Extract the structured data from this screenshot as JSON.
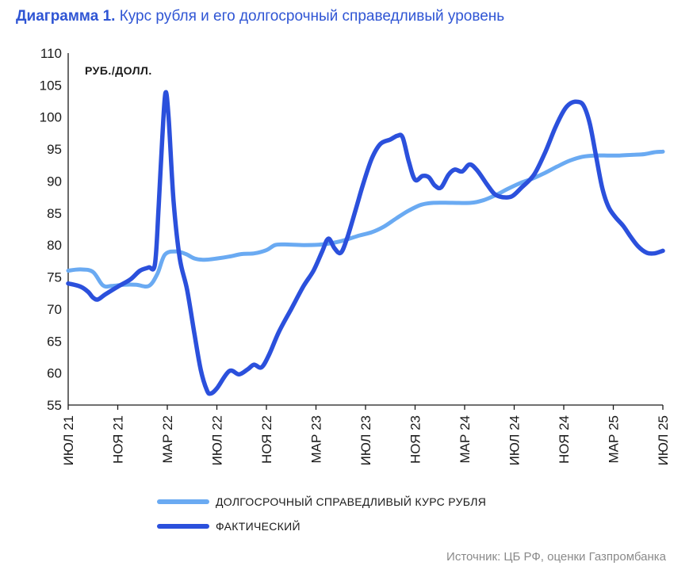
{
  "title": {
    "number": "Диаграмма 1.",
    "text": "Курс рубля и его долгосрочный справедливый уровень"
  },
  "source": "Источник: ЦБ РФ, оценки Газпромбанка",
  "chart_data": {
    "type": "line",
    "unit_label": "РУБ./ДОЛЛ.",
    "ylim": [
      55,
      110
    ],
    "yticks": [
      55,
      60,
      65,
      70,
      75,
      80,
      85,
      90,
      95,
      100,
      105,
      110
    ],
    "xlim": [
      0,
      48
    ],
    "xticks": [
      {
        "x": 0,
        "label": "ИЮЛ 21"
      },
      {
        "x": 4,
        "label": "НОЯ 21"
      },
      {
        "x": 8,
        "label": "МАР 22"
      },
      {
        "x": 12,
        "label": "ИЮЛ 22"
      },
      {
        "x": 16,
        "label": "НОЯ 22"
      },
      {
        "x": 20,
        "label": "МАР 23"
      },
      {
        "x": 24,
        "label": "ИЮЛ 23"
      },
      {
        "x": 28,
        "label": "НОЯ 23"
      },
      {
        "x": 32,
        "label": "МАР 24"
      },
      {
        "x": 36,
        "label": "ИЮЛ 24"
      },
      {
        "x": 40,
        "label": "НОЯ 24"
      },
      {
        "x": 44,
        "label": "МАР 25"
      },
      {
        "x": 48,
        "label": "ИЮЛ 25"
      }
    ],
    "grid": false,
    "legend_position": "bottom",
    "series": [
      {
        "name": "ДОЛГОСРОЧНЫЙ СПРАВЕДЛИВЫЙ КУРС РУБЛЯ",
        "color": "#6aaaf2",
        "points": [
          [
            0,
            76.0
          ],
          [
            1,
            76.2
          ],
          [
            2,
            75.8
          ],
          [
            2.8,
            73.7
          ],
          [
            3.5,
            73.6
          ],
          [
            4.5,
            73.8
          ],
          [
            5.5,
            73.8
          ],
          [
            6.5,
            73.6
          ],
          [
            7.2,
            75.5
          ],
          [
            7.8,
            78.5
          ],
          [
            8.7,
            79.0
          ],
          [
            9.5,
            78.6
          ],
          [
            10.2,
            77.9
          ],
          [
            11,
            77.7
          ],
          [
            12,
            77.9
          ],
          [
            13,
            78.2
          ],
          [
            14,
            78.6
          ],
          [
            15,
            78.7
          ],
          [
            16,
            79.2
          ],
          [
            16.7,
            80.0
          ],
          [
            17.5,
            80.1
          ],
          [
            19,
            80.0
          ],
          [
            20.5,
            80.1
          ],
          [
            22,
            80.6
          ],
          [
            23.5,
            81.5
          ],
          [
            24.5,
            82.0
          ],
          [
            25.5,
            82.9
          ],
          [
            26.5,
            84.2
          ],
          [
            27.5,
            85.4
          ],
          [
            28.5,
            86.3
          ],
          [
            29.5,
            86.6
          ],
          [
            31,
            86.6
          ],
          [
            32.5,
            86.6
          ],
          [
            33.5,
            87.0
          ],
          [
            34.5,
            87.8
          ],
          [
            35.5,
            88.8
          ],
          [
            36.5,
            89.7
          ],
          [
            37.5,
            90.4
          ],
          [
            38.5,
            91.3
          ],
          [
            39.5,
            92.3
          ],
          [
            40.5,
            93.2
          ],
          [
            41.5,
            93.8
          ],
          [
            42.5,
            94.0
          ],
          [
            43.5,
            94.0
          ],
          [
            44.5,
            94.0
          ],
          [
            45.5,
            94.1
          ],
          [
            46.5,
            94.2
          ],
          [
            47.3,
            94.5
          ],
          [
            48,
            94.6
          ]
        ]
      },
      {
        "name": "ФАКТИЧЕСКИЙ",
        "color": "#2b50dc",
        "points": [
          [
            0,
            74.0
          ],
          [
            1,
            73.5
          ],
          [
            1.6,
            72.7
          ],
          [
            2,
            71.8
          ],
          [
            2.4,
            71.5
          ],
          [
            3,
            72.3
          ],
          [
            4,
            73.5
          ],
          [
            5,
            74.6
          ],
          [
            5.8,
            76.0
          ],
          [
            6.5,
            76.5
          ],
          [
            7,
            77.0
          ],
          [
            7.3,
            86.0
          ],
          [
            7.6,
            97.0
          ],
          [
            7.85,
            103.8
          ],
          [
            8.1,
            100.0
          ],
          [
            8.5,
            87.0
          ],
          [
            9,
            78.0
          ],
          [
            9.6,
            73.0
          ],
          [
            10.2,
            66.0
          ],
          [
            10.7,
            60.5
          ],
          [
            11.2,
            57.3
          ],
          [
            11.5,
            56.8
          ],
          [
            12,
            57.6
          ],
          [
            13,
            60.3
          ],
          [
            13.8,
            59.8
          ],
          [
            14.5,
            60.6
          ],
          [
            15,
            61.3
          ],
          [
            15.6,
            60.9
          ],
          [
            16.2,
            62.8
          ],
          [
            17,
            66.4
          ],
          [
            18,
            70.0
          ],
          [
            19,
            73.6
          ],
          [
            19.8,
            76.0
          ],
          [
            20.5,
            79.0
          ],
          [
            21,
            81.0
          ],
          [
            21.5,
            79.5
          ],
          [
            22,
            78.8
          ],
          [
            22.5,
            81.0
          ],
          [
            23.2,
            85.5
          ],
          [
            23.8,
            89.5
          ],
          [
            24.5,
            93.5
          ],
          [
            25.2,
            95.8
          ],
          [
            26,
            96.5
          ],
          [
            26.6,
            97.1
          ],
          [
            27,
            96.8
          ],
          [
            27.5,
            93.0
          ],
          [
            28,
            90.2
          ],
          [
            28.6,
            90.8
          ],
          [
            29.1,
            90.6
          ],
          [
            29.6,
            89.3
          ],
          [
            30.1,
            89.0
          ],
          [
            30.7,
            91.0
          ],
          [
            31.2,
            91.8
          ],
          [
            31.8,
            91.5
          ],
          [
            32.4,
            92.6
          ],
          [
            33,
            91.7
          ],
          [
            33.8,
            89.5
          ],
          [
            34.4,
            88.0
          ],
          [
            35,
            87.5
          ],
          [
            35.8,
            87.6
          ],
          [
            36.6,
            89.0
          ],
          [
            37.6,
            91.0
          ],
          [
            38.5,
            94.5
          ],
          [
            39.3,
            98.3
          ],
          [
            40,
            101.0
          ],
          [
            40.5,
            102.1
          ],
          [
            41.1,
            102.4
          ],
          [
            41.6,
            101.8
          ],
          [
            42.1,
            99.0
          ],
          [
            42.6,
            94.0
          ],
          [
            43.1,
            89.0
          ],
          [
            43.6,
            86.0
          ],
          [
            44.2,
            84.3
          ],
          [
            44.8,
            83.0
          ],
          [
            45.4,
            81.3
          ],
          [
            46,
            79.8
          ],
          [
            46.7,
            78.8
          ],
          [
            47.3,
            78.7
          ],
          [
            48,
            79.1
          ]
        ]
      }
    ]
  }
}
